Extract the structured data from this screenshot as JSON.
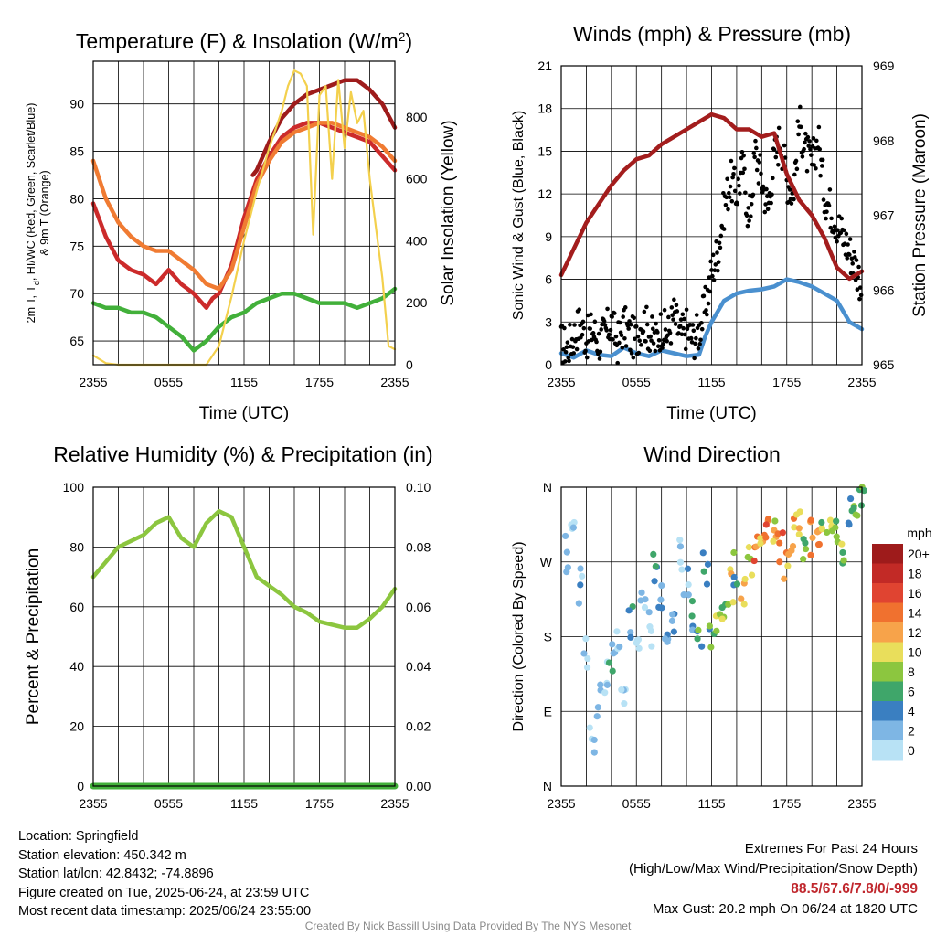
{
  "chart_data": [
    {
      "type": "line",
      "title": "Temperature (F) & Insolation (W/m",
      "title_superscript": "2",
      "title_suffix": ")",
      "xlabel": "Time (UTC)",
      "ylabel_left": "2m T, T",
      "ylabel_left_subscript": "d",
      "ylabel_left_suffix": ", HI/WC (Red, Green, Scarlet/Blue)",
      "ylabel_left_line2": "& 9m T (Orange)",
      "ylabel_right": "Solar Insolation (Yellow)",
      "x_ticks": [
        "2355",
        "0555",
        "1155",
        "1755",
        "2355"
      ],
      "ylim_left": [
        62.5,
        94.5
      ],
      "y_ticks_left": [
        65,
        70,
        75,
        80,
        85,
        90
      ],
      "ylim_right": [
        0,
        980
      ],
      "y_ticks_right": [
        0,
        200,
        400,
        600,
        800
      ],
      "series": [
        {
          "name": "2m T",
          "color": "#cc2b2b",
          "x": [
            0,
            1,
            2,
            3,
            4,
            5,
            6,
            7,
            8,
            9,
            9.5,
            10,
            11,
            12,
            13,
            14,
            15,
            16,
            17,
            18,
            19,
            20,
            21,
            22,
            23,
            24
          ],
          "values": [
            79.5,
            76,
            73.5,
            72.5,
            72,
            71,
            72.5,
            71,
            70,
            68.5,
            69.5,
            70,
            73,
            78,
            82,
            84.5,
            86.5,
            87.5,
            88,
            88,
            87.5,
            87,
            86.5,
            86,
            84.5,
            83
          ]
        },
        {
          "name": "9m T",
          "color": "#f07b32",
          "x": [
            0,
            1,
            2,
            3,
            4,
            5,
            6,
            7,
            8,
            9,
            10,
            11,
            12,
            13,
            14,
            15,
            16,
            17,
            18,
            19,
            20,
            21,
            22,
            23,
            24
          ],
          "values": [
            84,
            80,
            77.5,
            76,
            75,
            74.5,
            74.5,
            73.5,
            72.5,
            71,
            70.5,
            72.5,
            77,
            81.5,
            84,
            86,
            87,
            87.5,
            88,
            88,
            87.5,
            87,
            86.5,
            85.5,
            84
          ]
        },
        {
          "name": "Td",
          "color": "#42b03a",
          "x": [
            0,
            1,
            2,
            3,
            4,
            5,
            6,
            7,
            8,
            9,
            10,
            11,
            12,
            13,
            14,
            15,
            16,
            17,
            18,
            19,
            20,
            21,
            22,
            23,
            24
          ],
          "values": [
            69,
            68.5,
            68.5,
            68,
            68,
            67.5,
            66.5,
            65.5,
            64,
            65,
            66.5,
            67.5,
            68,
            69,
            69.5,
            70,
            70,
            69.5,
            69,
            69,
            69,
            68.5,
            69,
            69.5,
            70.5
          ]
        },
        {
          "name": "HI",
          "color": "#9e1b1b",
          "x": [
            12.7,
            13,
            14,
            15,
            16,
            17,
            18,
            19,
            20,
            21,
            22,
            23,
            24
          ],
          "values": [
            82.5,
            83,
            86,
            88.5,
            90,
            91,
            91.5,
            92,
            92.5,
            92.5,
            91.5,
            90,
            87.5
          ]
        },
        {
          "name": "Solar",
          "axis": "right",
          "color": "#f3d04d",
          "x": [
            0,
            1,
            2,
            3,
            4,
            5,
            6,
            7,
            8,
            9,
            10,
            11,
            12,
            13,
            14,
            15,
            15.5,
            16,
            16.5,
            17,
            17.5,
            18,
            18.5,
            19,
            19.5,
            20,
            20.5,
            21,
            21.5,
            22,
            23,
            23.5,
            24
          ],
          "values": [
            30,
            5,
            0,
            0,
            0,
            0,
            0,
            0,
            0,
            0,
            60,
            220,
            400,
            560,
            700,
            820,
            900,
            950,
            940,
            900,
            420,
            870,
            900,
            600,
            920,
            700,
            880,
            780,
            820,
            600,
            280,
            60,
            50
          ]
        }
      ]
    },
    {
      "type": "line",
      "title": "Winds (mph) & Pressure (mb)",
      "xlabel": "Time (UTC)",
      "ylabel_left": "Sonic Wind & Gust (Blue, Black)",
      "ylabel_right": "Station Pressure (Maroon)",
      "x_ticks": [
        "2355",
        "0555",
        "1155",
        "1755",
        "2355"
      ],
      "ylim_left": [
        0,
        21
      ],
      "y_ticks_left": [
        0,
        3,
        6,
        9,
        12,
        15,
        18,
        21
      ],
      "ylim_right": [
        965,
        969
      ],
      "y_ticks_right": [
        965,
        966,
        967,
        968,
        969
      ],
      "series": [
        {
          "name": "Wind",
          "color": "#4a90cf",
          "x": [
            0,
            1,
            2,
            3,
            4,
            5,
            6,
            7,
            8,
            9,
            10,
            11,
            11.5,
            12,
            13,
            14,
            15,
            16,
            17,
            18,
            19,
            20,
            21,
            22,
            23,
            24
          ],
          "values": [
            0.8,
            0.5,
            1,
            0.7,
            0.6,
            1.2,
            0.8,
            0.6,
            1,
            0.8,
            0.6,
            0.7,
            2,
            3,
            4.5,
            5,
            5.2,
            5.3,
            5.5,
            6,
            5.8,
            5.5,
            5,
            4.5,
            3,
            2.5
          ]
        },
        {
          "name": "Gust",
          "color": "#000000",
          "x": [
            0,
            0.5,
            1,
            1.5,
            2,
            2.5,
            3,
            3.5,
            4,
            4.5,
            5,
            5.5,
            6,
            6.5,
            7,
            7.5,
            8,
            8.5,
            9,
            9.5,
            10,
            10.5,
            11,
            11.5,
            12,
            12.5,
            13,
            13.5,
            14,
            14.5,
            15,
            15.5,
            16,
            16.5,
            17,
            17.5,
            18,
            18.5,
            19,
            19.5,
            20,
            20.5,
            21,
            21.5,
            22,
            22.5,
            23,
            23.5,
            24
          ],
          "values": [
            1.5,
            1.2,
            2,
            3,
            1.8,
            2.5,
            1.6,
            2.2,
            3,
            1.5,
            2.8,
            2,
            1.8,
            3.2,
            2.4,
            1.6,
            2.7,
            2.1,
            3.5,
            2,
            2.6,
            1.8,
            2.4,
            4,
            6.5,
            8,
            11,
            13,
            12,
            14,
            10,
            15,
            13,
            11,
            14.5,
            16,
            13,
            12,
            17,
            15,
            14,
            16,
            12,
            11,
            10,
            9,
            8,
            7,
            5.5
          ]
        },
        {
          "name": "Pressure",
          "axis": "right",
          "color": "#a31d1d",
          "x": [
            0,
            1,
            2,
            3,
            4,
            5,
            6,
            7,
            8,
            9,
            10,
            11,
            12,
            13,
            14,
            15,
            16,
            17,
            18,
            19,
            20,
            21,
            22,
            23,
            24
          ],
          "values": [
            966.2,
            966.55,
            966.9,
            967.15,
            967.4,
            967.6,
            967.75,
            967.8,
            967.95,
            968.05,
            968.15,
            968.25,
            968.35,
            968.3,
            968.15,
            968.15,
            968.05,
            968.1,
            967.55,
            967.2,
            967.0,
            966.7,
            966.3,
            966.15,
            966.25
          ]
        }
      ]
    },
    {
      "type": "line",
      "title": "Relative Humidity (%) & Precipitation (in)",
      "ylabel_left": "Percent & Precipitation",
      "x_ticks": [
        "2355",
        "0555",
        "1155",
        "1755",
        "2355"
      ],
      "ylim_left": [
        0,
        100
      ],
      "y_ticks_left": [
        0,
        20,
        40,
        60,
        80,
        100
      ],
      "ylim_right": [
        0,
        0.1
      ],
      "y_ticks_right": [
        "0.00",
        "0.02",
        "0.04",
        "0.06",
        "0.08",
        "0.10"
      ],
      "series": [
        {
          "name": "RH",
          "color": "#8cc63f",
          "x": [
            0,
            1,
            2,
            3,
            4,
            5,
            6,
            7,
            8,
            9,
            10,
            11,
            12,
            13,
            14,
            15,
            16,
            17,
            18,
            19,
            20,
            21,
            22,
            23,
            24
          ],
          "values": [
            70,
            75,
            80,
            82,
            84,
            88,
            90,
            83,
            80,
            88,
            92,
            90,
            80,
            70,
            67,
            64,
            60,
            58,
            55,
            54,
            53,
            53,
            56,
            60,
            66
          ]
        },
        {
          "name": "Precipitation",
          "color": "#42b03a",
          "x": [
            0,
            24
          ],
          "values": [
            0,
            0
          ]
        }
      ]
    },
    {
      "type": "scatter",
      "title": "Wind Direction",
      "ylabel_left": "Direction (Colored By Speed)",
      "x_ticks": [
        "2355",
        "0555",
        "1155",
        "1755",
        "2355"
      ],
      "y_ticks": [
        "N",
        "E",
        "S",
        "W",
        "N"
      ],
      "ylim_left": [
        0,
        360
      ],
      "legend_title": "mph",
      "legend_labels": [
        "20+",
        "18",
        "16",
        "14",
        "12",
        "10",
        "8",
        "6",
        "4",
        "2",
        "0"
      ],
      "legend_colors": [
        "#9e1b1b",
        "#c22a26",
        "#e04431",
        "#f0712f",
        "#f7a34a",
        "#e9de5b",
        "#8cc63f",
        "#3fa66a",
        "#3a7fc1",
        "#7eb6e4",
        "#b8e2f5"
      ],
      "series": [
        {
          "name": "Direction",
          "x": [
            0.5,
            1,
            1.5,
            2,
            2.5,
            3,
            3.5,
            4,
            4.5,
            5,
            5.5,
            6,
            6.5,
            7,
            7.5,
            8,
            8.5,
            9,
            9.5,
            10,
            10.5,
            11,
            11.5,
            12,
            12.5,
            13,
            13.5,
            14,
            14.5,
            15,
            15.5,
            16,
            16.5,
            17,
            17.5,
            18,
            18.5,
            19,
            19.5,
            20,
            20.5,
            21,
            21.5,
            22,
            22.5,
            23,
            23.5,
            24
          ],
          "values": [
            280,
            330,
            240,
            160,
            60,
            100,
            130,
            150,
            170,
            120,
            200,
            180,
            230,
            190,
            260,
            220,
            170,
            200,
            280,
            240,
            210,
            190,
            260,
            180,
            190,
            210,
            240,
            260,
            230,
            270,
            290,
            280,
            300,
            310,
            290,
            270,
            300,
            310,
            285,
            300,
            290,
            320,
            310,
            300,
            280,
            330,
            320,
            340
          ],
          "speeds": [
            1,
            0,
            1,
            0,
            0,
            1,
            0,
            2,
            1,
            0,
            2,
            1,
            1,
            0,
            2,
            1,
            1,
            2,
            0,
            1,
            2,
            3,
            2,
            3,
            4,
            4,
            5,
            3,
            6,
            4,
            7,
            6,
            7,
            5,
            7,
            6,
            6,
            5,
            4,
            7,
            6,
            4,
            5,
            3,
            4,
            3,
            4,
            3
          ]
        }
      ]
    }
  ],
  "footer": {
    "location": "Location: Springfield",
    "elevation": "Station elevation: 450.342 m",
    "latlon": "Station lat/lon: 42.8432; -74.8896",
    "created": "Figure created on Tue, 2025-06-24, at 23:59 UTC",
    "recent": "Most recent data timestamp: 2025/06/24 23:55:00",
    "extremes_title": "Extremes For Past 24 Hours",
    "extremes_legend": "(High/Low/Max Wind/Precipitation/Snow Depth)",
    "extremes_values": "88.5/67.6/7.8/0/-999",
    "max_gust": "Max Gust: 20.2 mph On 06/24 at 1820 UTC",
    "credit": "Created By Nick Bassill Using Data Provided By The NYS Mesonet"
  }
}
